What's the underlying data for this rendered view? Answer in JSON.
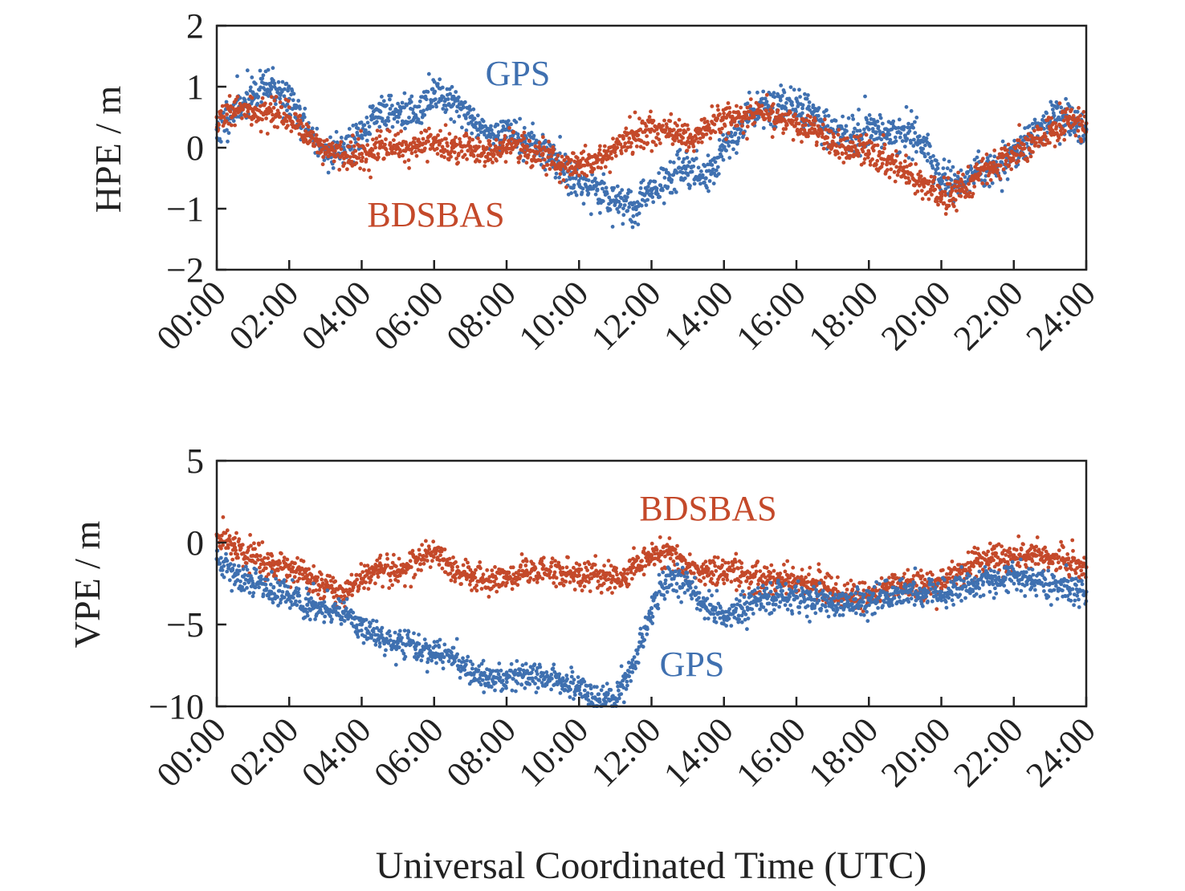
{
  "chart_data": [
    {
      "type": "scatter",
      "ylabel": "HPE / m",
      "ylim": [
        -2,
        2
      ],
      "yticks": [
        -2,
        -1,
        0,
        1,
        2
      ],
      "ytick_labels": [
        "−2",
        "−1",
        "0",
        "1",
        "2"
      ],
      "xlim": [
        0,
        24
      ],
      "xticks": [
        0,
        2,
        4,
        6,
        8,
        10,
        12,
        14,
        16,
        18,
        20,
        22,
        24
      ],
      "xtick_labels": [
        "00:00",
        "02:00",
        "04:00",
        "06:00",
        "08:00",
        "10:00",
        "12:00",
        "14:00",
        "16:00",
        "18:00",
        "20:00",
        "22:00",
        "24:00"
      ],
      "series": [
        {
          "name": "GPS",
          "color": "#3f70b0",
          "noise": 0.15,
          "x": [
            0,
            0.5,
            1,
            1.5,
            2,
            2.5,
            3,
            3.5,
            4,
            4.5,
            5,
            5.5,
            6,
            6.5,
            7,
            7.5,
            8,
            8.5,
            9,
            9.5,
            10,
            10.5,
            11,
            11.5,
            12,
            12.5,
            13,
            13.5,
            14,
            14.5,
            15,
            15.5,
            16,
            16.5,
            17,
            17.5,
            18,
            18.5,
            19,
            19.5,
            20,
            20.5,
            21,
            21.5,
            22,
            22.5,
            23,
            23.5,
            24
          ],
          "y": [
            0.3,
            0.6,
            0.9,
            1.0,
            0.8,
            0.3,
            -0.1,
            0.0,
            0.2,
            0.6,
            0.6,
            0.5,
            0.9,
            0.8,
            0.5,
            0.2,
            0.3,
            0.1,
            0.0,
            -0.3,
            -0.6,
            -0.7,
            -0.9,
            -1.0,
            -0.7,
            -0.5,
            -0.3,
            -0.5,
            0.0,
            0.4,
            0.7,
            0.7,
            0.8,
            0.5,
            0.3,
            0.2,
            0.3,
            0.2,
            0.2,
            0.1,
            -0.5,
            -0.6,
            -0.4,
            -0.3,
            -0.1,
            0.2,
            0.4,
            0.5,
            0.3
          ]
        },
        {
          "name": "BDSBAS",
          "color": "#c4492a",
          "noise": 0.13,
          "x": [
            0,
            0.5,
            1,
            1.5,
            2,
            2.5,
            3,
            3.5,
            4,
            4.5,
            5,
            5.5,
            6,
            6.5,
            7,
            7.5,
            8,
            8.5,
            9,
            9.5,
            10,
            10.5,
            11,
            11.5,
            12,
            12.5,
            13,
            13.5,
            14,
            14.5,
            15,
            15.5,
            16,
            16.5,
            17,
            17.5,
            18,
            18.5,
            19,
            19.5,
            20,
            20.5,
            21,
            21.5,
            22,
            22.5,
            23,
            23.5,
            24
          ],
          "y": [
            0.5,
            0.6,
            0.6,
            0.6,
            0.5,
            0.2,
            0.0,
            -0.1,
            -0.1,
            0.0,
            0.0,
            0.0,
            0.1,
            0.0,
            0.0,
            -0.1,
            0.0,
            0.0,
            -0.1,
            -0.3,
            -0.3,
            -0.2,
            0.0,
            0.2,
            0.3,
            0.3,
            0.1,
            0.3,
            0.5,
            0.5,
            0.6,
            0.5,
            0.4,
            0.3,
            0.1,
            0.0,
            -0.1,
            -0.2,
            -0.4,
            -0.6,
            -0.8,
            -0.7,
            -0.5,
            -0.3,
            -0.1,
            0.1,
            0.3,
            0.4,
            0.4
          ]
        }
      ]
    },
    {
      "type": "scatter",
      "ylabel": "VPE / m",
      "ylim": [
        -10,
        5
      ],
      "yticks": [
        -10,
        -5,
        0,
        5
      ],
      "ytick_labels": [
        "−10",
        "−5",
        "0",
        "5"
      ],
      "xlim": [
        0,
        24
      ],
      "xticks": [
        0,
        2,
        4,
        6,
        8,
        10,
        12,
        14,
        16,
        18,
        20,
        22,
        24
      ],
      "xtick_labels": [
        "00:00",
        "02:00",
        "04:00",
        "06:00",
        "08:00",
        "10:00",
        "12:00",
        "14:00",
        "16:00",
        "18:00",
        "20:00",
        "22:00",
        "24:00"
      ],
      "xlabel": "Universal Coordinated Time (UTC)",
      "series": [
        {
          "name": "BDSBAS",
          "color": "#c4492a",
          "noise": 0.45,
          "x": [
            0,
            0.5,
            1,
            1.5,
            2,
            2.5,
            3,
            3.5,
            4,
            4.5,
            5,
            5.5,
            6,
            6.5,
            7,
            7.5,
            8,
            8.5,
            9,
            9.5,
            10,
            10.5,
            11,
            11.5,
            12,
            12.5,
            13,
            13.5,
            14,
            14.5,
            15,
            15.5,
            16,
            16.5,
            17,
            17.5,
            18,
            18.5,
            19,
            19.5,
            20,
            20.5,
            21,
            21.5,
            22,
            22.5,
            23,
            23.5,
            24
          ],
          "y": [
            0.5,
            -0.3,
            -0.8,
            -1.3,
            -1.6,
            -2.0,
            -2.8,
            -3.0,
            -2.2,
            -1.8,
            -1.7,
            -1.2,
            -0.5,
            -1.5,
            -2.0,
            -2.3,
            -2.1,
            -1.8,
            -1.6,
            -1.8,
            -2.0,
            -2.0,
            -2.3,
            -1.5,
            -0.8,
            -0.5,
            -1.5,
            -1.8,
            -1.8,
            -2.0,
            -2.2,
            -2.3,
            -2.5,
            -2.6,
            -3.0,
            -3.3,
            -3.2,
            -2.8,
            -2.5,
            -2.8,
            -2.5,
            -1.8,
            -1.0,
            -0.8,
            -1.0,
            -0.7,
            -1.0,
            -1.3,
            -1.5
          ]
        },
        {
          "name": "GPS",
          "color": "#3f70b0",
          "noise": 0.45,
          "x": [
            0,
            0.5,
            1,
            1.5,
            2,
            2.5,
            3,
            3.5,
            4,
            4.5,
            5,
            5.5,
            6,
            6.5,
            7,
            7.5,
            8,
            8.5,
            9,
            9.5,
            10,
            10.5,
            11,
            11.5,
            12,
            12.5,
            13,
            13.5,
            14,
            14.5,
            15,
            15.5,
            16,
            16.5,
            17,
            17.5,
            18,
            18.5,
            19,
            19.5,
            20,
            20.5,
            21,
            21.5,
            22,
            22.5,
            23,
            23.5,
            24
          ],
          "y": [
            -1.0,
            -2.0,
            -2.5,
            -3.0,
            -3.3,
            -3.8,
            -4.0,
            -4.3,
            -5.0,
            -5.8,
            -6.0,
            -6.3,
            -6.8,
            -7.0,
            -8.0,
            -8.3,
            -8.3,
            -8.0,
            -8.0,
            -8.5,
            -9.0,
            -9.6,
            -9.5,
            -7.5,
            -4.0,
            -2.0,
            -2.5,
            -4.0,
            -4.5,
            -4.0,
            -3.5,
            -3.2,
            -3.3,
            -3.5,
            -3.8,
            -3.8,
            -3.5,
            -3.3,
            -3.0,
            -3.3,
            -3.0,
            -2.8,
            -2.5,
            -2.3,
            -2.0,
            -2.3,
            -2.5,
            -2.8,
            -3.0
          ]
        }
      ]
    }
  ]
}
